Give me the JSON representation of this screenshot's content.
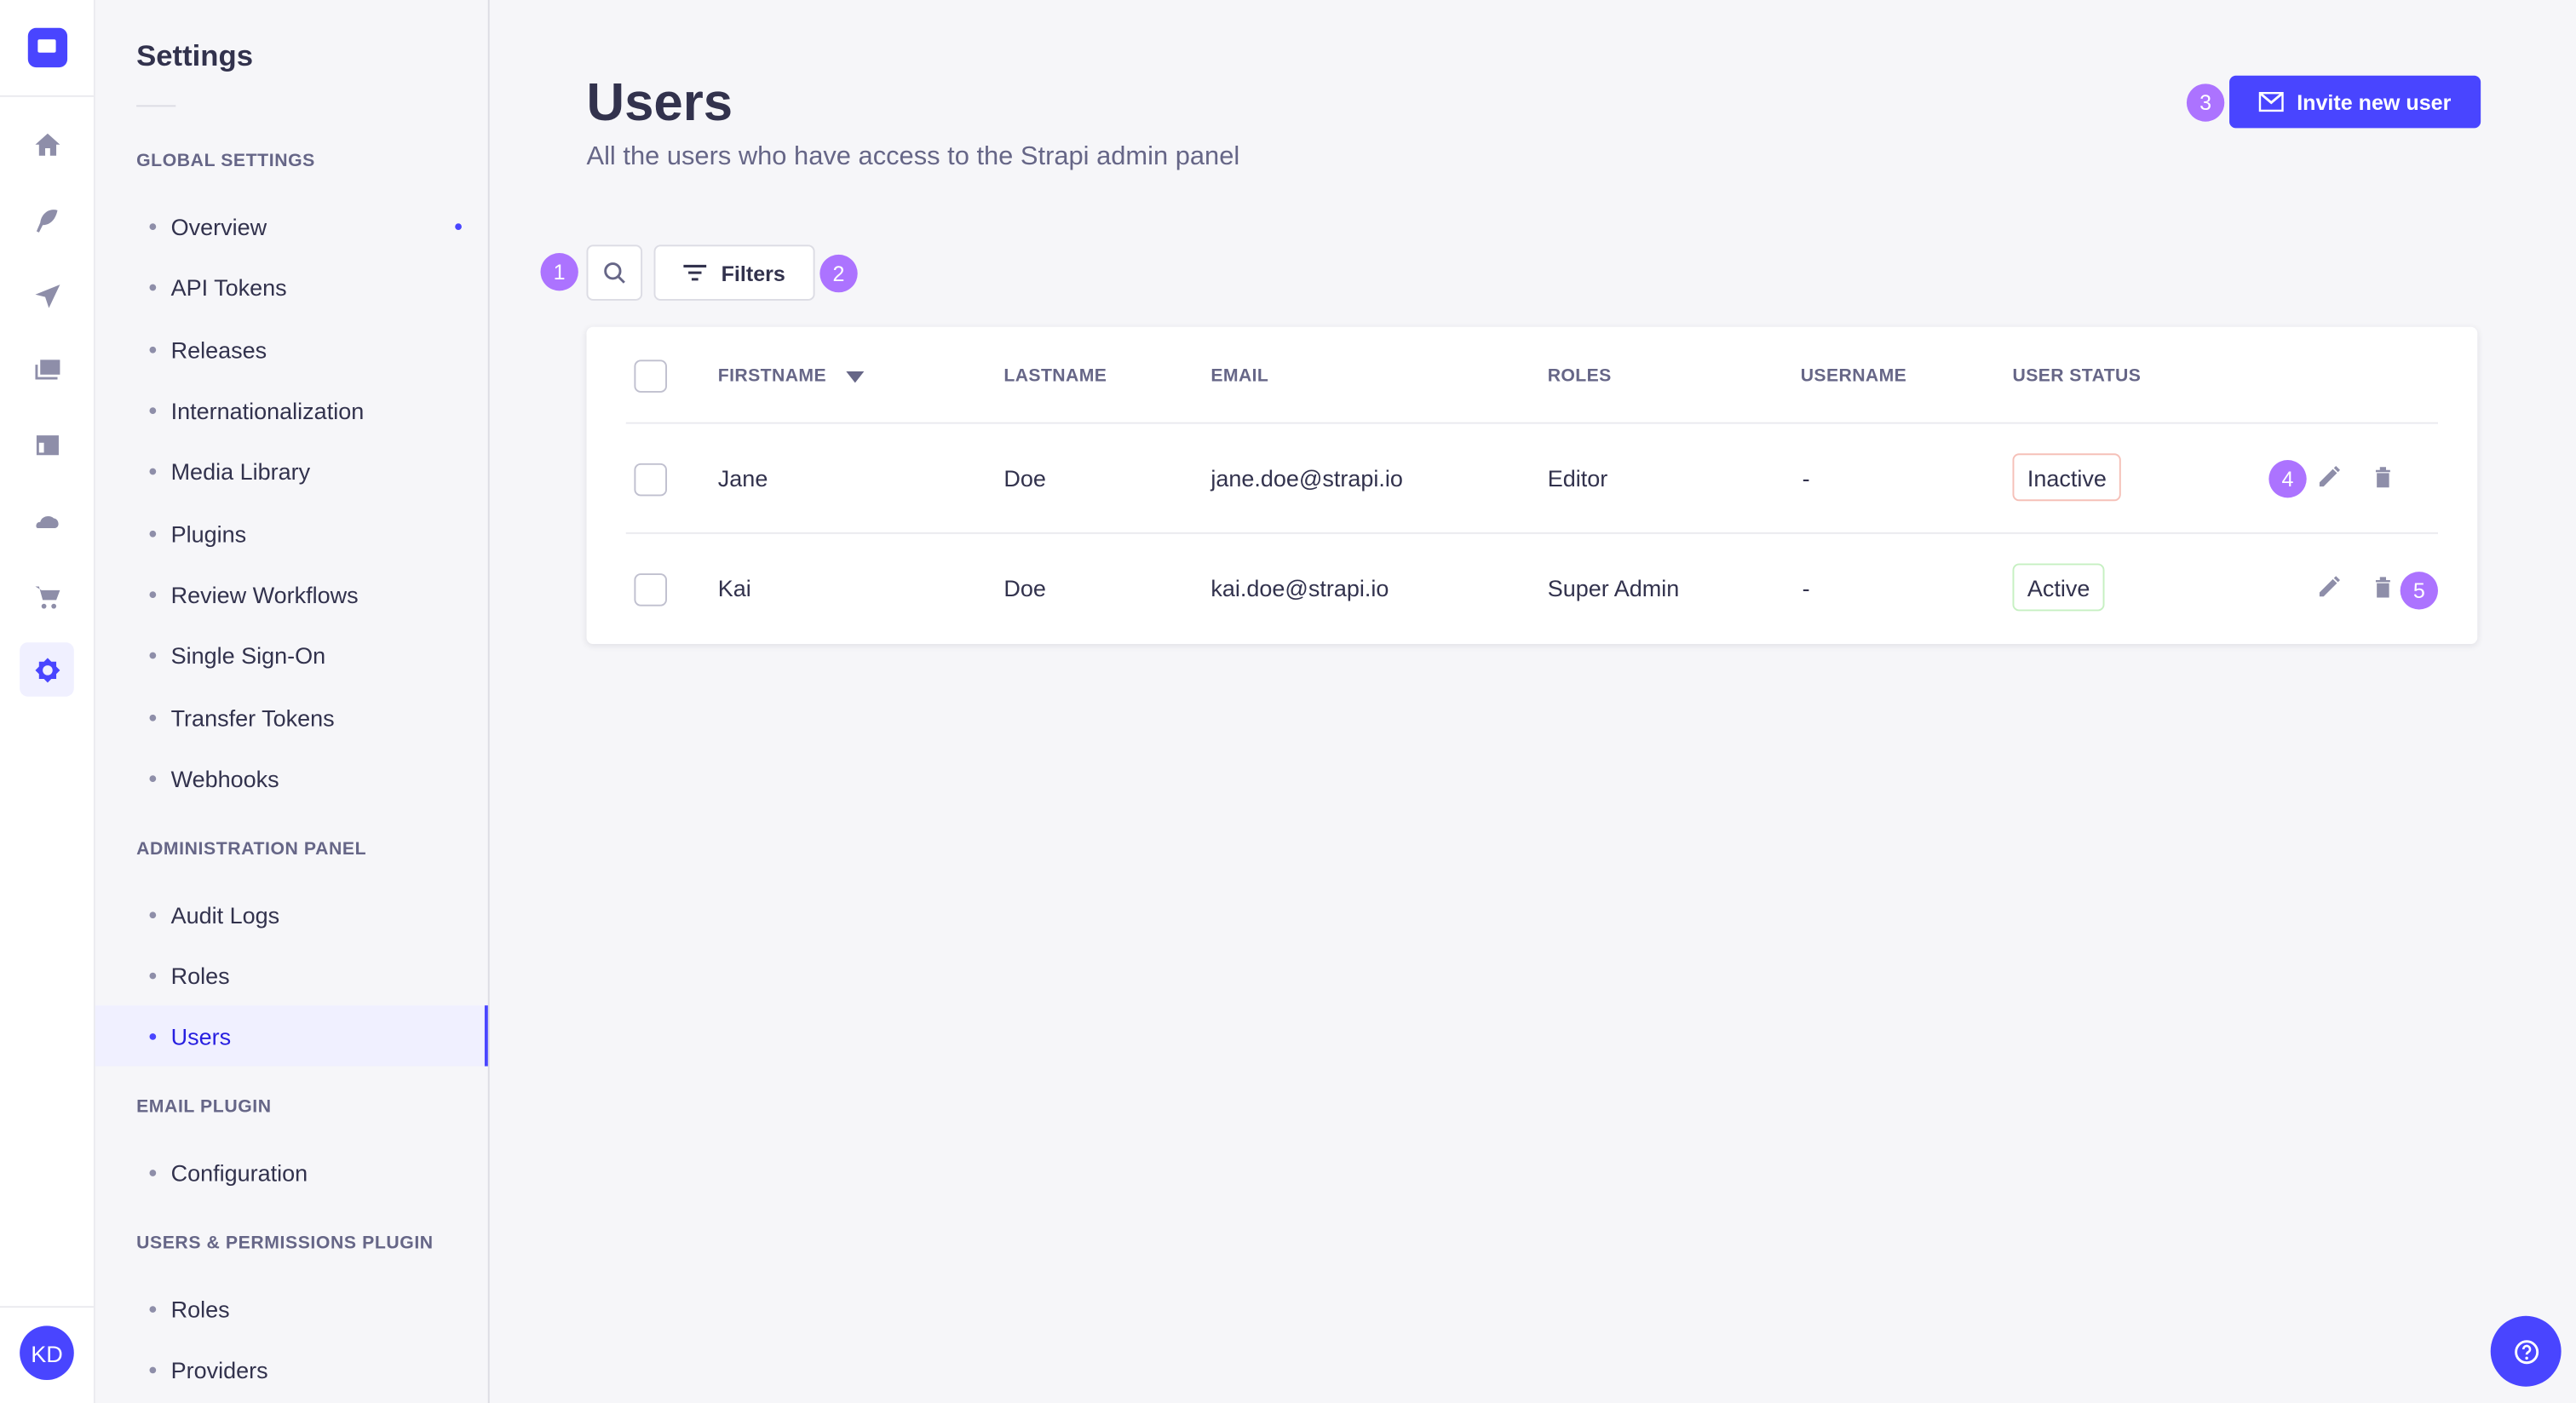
{
  "rail": {
    "items": [
      "home-icon",
      "feather-icon",
      "paper-plane-icon",
      "media-icon",
      "layout-icon",
      "cloud-icon",
      "cart-icon",
      "settings-icon"
    ],
    "avatar": "KD",
    "accent": "#4945ff"
  },
  "sidebar": {
    "title": "Settings",
    "sections": [
      {
        "label": "GLOBAL SETTINGS",
        "items": [
          "Overview",
          "API Tokens",
          "Releases",
          "Internationalization",
          "Media Library",
          "Plugins",
          "Review Workflows",
          "Single Sign-On",
          "Transfer Tokens",
          "Webhooks"
        ]
      },
      {
        "label": "ADMINISTRATION PANEL",
        "items": [
          "Audit Logs",
          "Roles",
          "Users"
        ]
      },
      {
        "label": "EMAIL PLUGIN",
        "items": [
          "Configuration"
        ]
      },
      {
        "label": "USERS & PERMISSIONS PLUGIN",
        "items": [
          "Roles",
          "Providers"
        ]
      }
    ],
    "active": "Users"
  },
  "header": {
    "title": "Users",
    "subtitle": "All the users who have access to the Strapi admin panel",
    "invite_label": "Invite new user"
  },
  "toolbar": {
    "filters_label": "Filters"
  },
  "annotations": [
    "1",
    "2",
    "3",
    "4",
    "5"
  ],
  "table": {
    "columns": [
      "FIRSTNAME",
      "LASTNAME",
      "EMAIL",
      "ROLES",
      "USERNAME",
      "USER STATUS"
    ],
    "rows": [
      {
        "firstname": "Jane",
        "lastname": "Doe",
        "email": "jane.doe@strapi.io",
        "roles": "Editor",
        "username": "-",
        "status": "Inactive"
      },
      {
        "firstname": "Kai",
        "lastname": "Doe",
        "email": "kai.doe@strapi.io",
        "roles": "Super Admin",
        "username": "-",
        "status": "Active"
      }
    ]
  },
  "colors": {
    "inactive_border": "#f5c0b8",
    "active_border": "#c6f0c2",
    "annotation": "#ac73ff"
  }
}
